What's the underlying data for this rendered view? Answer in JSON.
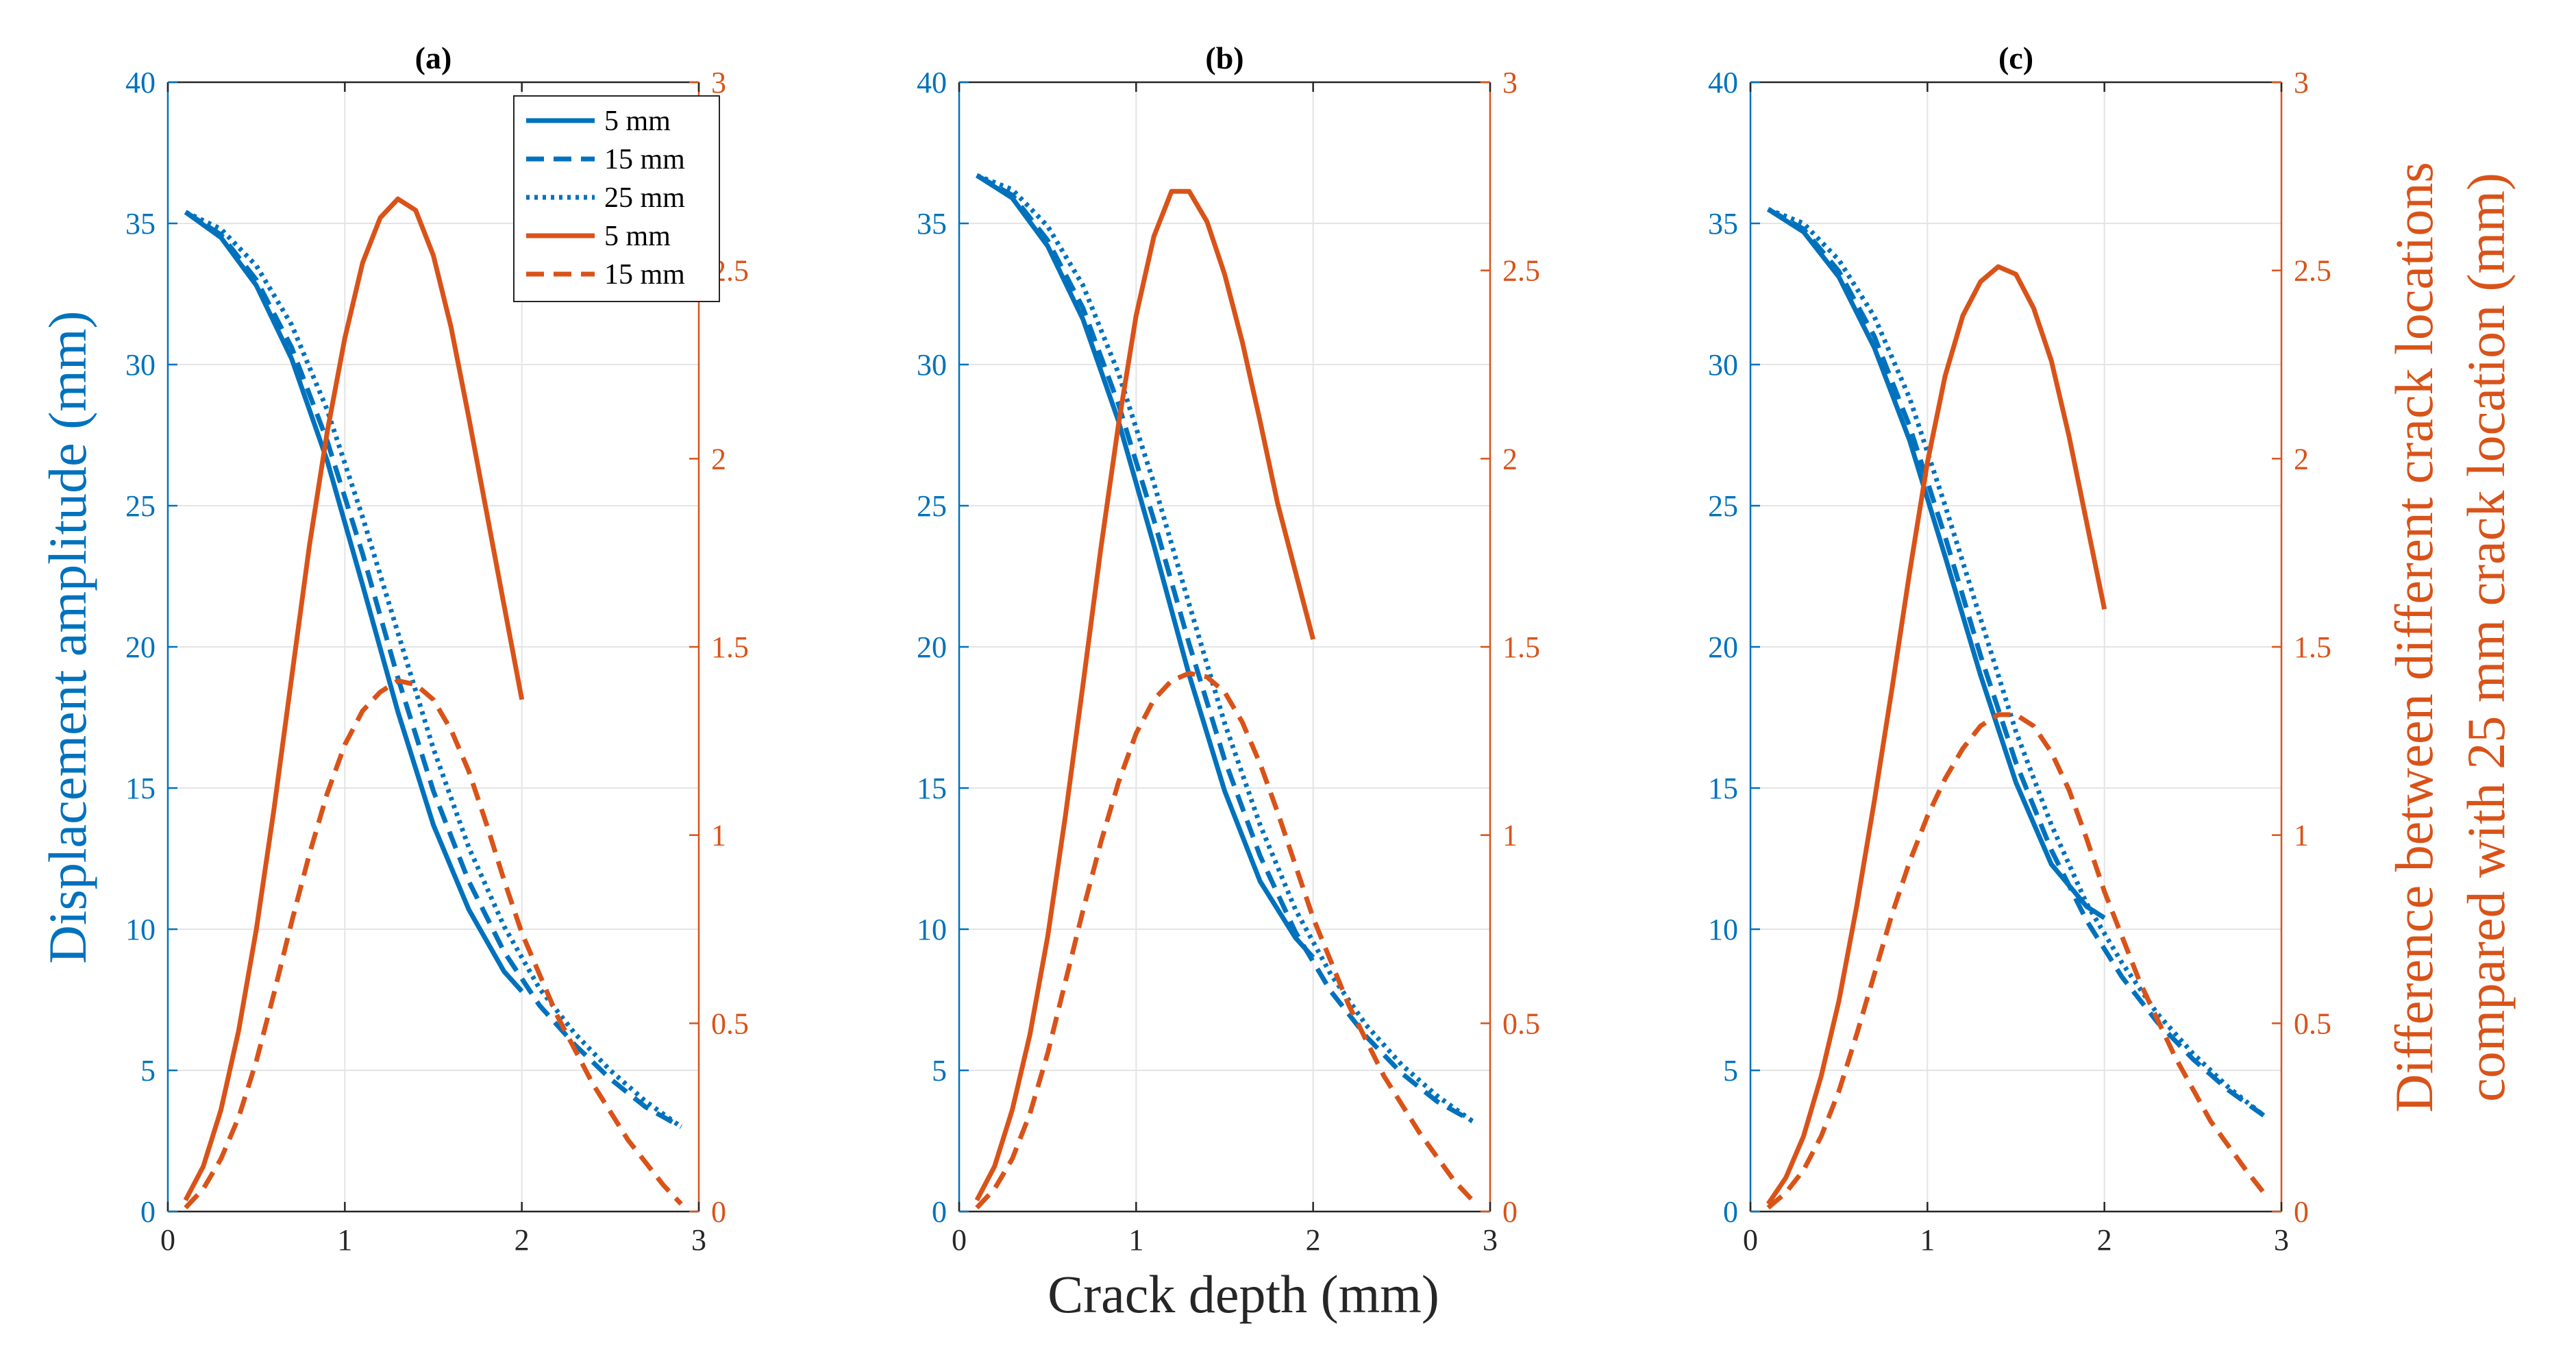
{
  "chart_data": {
    "type": "line",
    "shared": {
      "xlabel": "Crack depth (mm)",
      "ylabel_left": "Displacement amplitude (mm)",
      "ylabel_right_line1": "Difference between different crack locations",
      "ylabel_right_line2": "compared with 25 mm crack location (mm)",
      "xlim": [
        0,
        3
      ],
      "ylim_left": [
        0,
        40
      ],
      "ylim_right": [
        0,
        3
      ],
      "xticks": [
        0,
        1,
        2,
        3
      ],
      "yticks_left": [
        0,
        5,
        10,
        15,
        20,
        25,
        30,
        35,
        40
      ],
      "yticks_right": [
        0,
        0.5,
        1,
        1.5,
        2,
        2.5,
        3
      ],
      "grid": true,
      "colors": {
        "left_axis": "#0072BD",
        "right_axis": "#D95319"
      },
      "legend_placement": "top-right of panel (a)",
      "legend": [
        {
          "label": "5 mm",
          "color": "#0072BD",
          "style": "solid"
        },
        {
          "label": "15 mm",
          "color": "#0072BD",
          "style": "dashed"
        },
        {
          "label": "25 mm",
          "color": "#0072BD",
          "style": "dotted"
        },
        {
          "label": "5 mm",
          "color": "#D95319",
          "style": "solid"
        },
        {
          "label": "15 mm",
          "color": "#D95319",
          "style": "dashed"
        }
      ]
    },
    "panels": [
      {
        "title": "(a)",
        "series": [
          {
            "name": "5 mm",
            "axis": "left",
            "style": "solid",
            "x": [
              0.1,
              0.3,
              0.5,
              0.7,
              0.9,
              1.1,
              1.3,
              1.5,
              1.7,
              1.9,
              2.0
            ],
            "y": [
              35.4,
              34.5,
              32.8,
              30.2,
              26.6,
              22.2,
              17.7,
              13.7,
              10.7,
              8.5,
              7.8
            ]
          },
          {
            "name": "15 mm",
            "axis": "left",
            "style": "dashed",
            "x": [
              0.1,
              0.3,
              0.5,
              0.7,
              0.9,
              1.1,
              1.3,
              1.5,
              1.7,
              1.9,
              2.1,
              2.3,
              2.5,
              2.7,
              2.9
            ],
            "y": [
              35.4,
              34.6,
              33.0,
              30.6,
              27.3,
              23.3,
              18.9,
              14.9,
              11.7,
              9.2,
              7.3,
              5.9,
              4.7,
              3.7,
              3.0
            ]
          },
          {
            "name": "25 mm",
            "axis": "left",
            "style": "dotted",
            "x": [
              0.1,
              0.3,
              0.5,
              0.7,
              0.9,
              1.1,
              1.3,
              1.5,
              1.7,
              1.9,
              2.1,
              2.3,
              2.5,
              2.7,
              2.9
            ],
            "y": [
              35.4,
              34.8,
              33.5,
              31.4,
              28.4,
              24.6,
              20.5,
              16.4,
              12.9,
              10.1,
              7.9,
              6.3,
              5.0,
              3.9,
              3.0
            ]
          },
          {
            "name": "5 mm",
            "axis": "right",
            "style": "solid",
            "x": [
              0.1,
              0.2,
              0.3,
              0.4,
              0.5,
              0.6,
              0.7,
              0.8,
              0.9,
              1.0,
              1.1,
              1.2,
              1.3,
              1.4,
              1.5,
              1.6,
              1.7,
              1.8,
              1.9,
              2.0
            ],
            "y": [
              0.03,
              0.12,
              0.27,
              0.48,
              0.75,
              1.07,
              1.42,
              1.77,
              2.07,
              2.32,
              2.52,
              2.64,
              2.69,
              2.66,
              2.54,
              2.35,
              2.11,
              1.86,
              1.61,
              1.36
            ]
          },
          {
            "name": "15 mm",
            "axis": "right",
            "style": "dashed",
            "x": [
              0.1,
              0.2,
              0.3,
              0.4,
              0.5,
              0.6,
              0.7,
              0.8,
              0.9,
              1.0,
              1.1,
              1.2,
              1.3,
              1.4,
              1.5,
              1.6,
              1.7,
              1.8,
              1.9,
              2.0,
              2.2,
              2.4,
              2.6,
              2.8,
              2.9
            ],
            "y": [
              0.01,
              0.06,
              0.14,
              0.25,
              0.4,
              0.58,
              0.77,
              0.95,
              1.11,
              1.24,
              1.33,
              1.38,
              1.41,
              1.4,
              1.36,
              1.28,
              1.17,
              1.03,
              0.88,
              0.74,
              0.52,
              0.34,
              0.19,
              0.07,
              0.02
            ]
          }
        ]
      },
      {
        "title": "(b)",
        "series": [
          {
            "name": "5 mm",
            "axis": "left",
            "style": "solid",
            "x": [
              0.1,
              0.3,
              0.5,
              0.7,
              0.9,
              1.1,
              1.3,
              1.5,
              1.7,
              1.9,
              2.0
            ],
            "y": [
              36.7,
              35.9,
              34.2,
              31.6,
              28.0,
              23.6,
              19.0,
              14.9,
              11.7,
              9.7,
              9.0
            ]
          },
          {
            "name": "15 mm",
            "axis": "left",
            "style": "dashed",
            "x": [
              0.1,
              0.3,
              0.5,
              0.7,
              0.9,
              1.1,
              1.3,
              1.5,
              1.7,
              1.9,
              2.1,
              2.3,
              2.5,
              2.7,
              2.9
            ],
            "y": [
              36.7,
              36.0,
              34.4,
              32.0,
              28.6,
              24.5,
              20.1,
              16.0,
              12.6,
              9.9,
              7.8,
              6.2,
              4.9,
              3.9,
              3.2
            ]
          },
          {
            "name": "25 mm",
            "axis": "left",
            "style": "dotted",
            "x": [
              0.1,
              0.3,
              0.5,
              0.7,
              0.9,
              1.1,
              1.3,
              1.5,
              1.7,
              1.9,
              2.1,
              2.3,
              2.5,
              2.7,
              2.9
            ],
            "y": [
              36.7,
              36.2,
              34.9,
              32.8,
              29.7,
              25.8,
              21.5,
              17.3,
              13.7,
              10.7,
              8.4,
              6.6,
              5.2,
              4.1,
              3.2
            ]
          },
          {
            "name": "5 mm",
            "axis": "right",
            "style": "solid",
            "x": [
              0.1,
              0.2,
              0.3,
              0.4,
              0.5,
              0.6,
              0.7,
              0.8,
              0.9,
              1.0,
              1.1,
              1.2,
              1.3,
              1.4,
              1.5,
              1.6,
              1.7,
              1.8,
              1.9,
              2.0
            ],
            "y": [
              0.03,
              0.12,
              0.27,
              0.47,
              0.73,
              1.05,
              1.4,
              1.76,
              2.09,
              2.38,
              2.59,
              2.71,
              2.71,
              2.63,
              2.49,
              2.31,
              2.1,
              1.88,
              1.7,
              1.52
            ]
          },
          {
            "name": "15 mm",
            "axis": "right",
            "style": "dashed",
            "x": [
              0.1,
              0.2,
              0.3,
              0.4,
              0.5,
              0.6,
              0.7,
              0.8,
              0.9,
              1.0,
              1.1,
              1.2,
              1.3,
              1.4,
              1.5,
              1.6,
              1.7,
              1.8,
              1.9,
              2.0,
              2.2,
              2.4,
              2.6,
              2.8,
              2.9
            ],
            "y": [
              0.01,
              0.06,
              0.14,
              0.26,
              0.42,
              0.61,
              0.8,
              0.98,
              1.14,
              1.27,
              1.36,
              1.41,
              1.43,
              1.42,
              1.38,
              1.3,
              1.19,
              1.06,
              0.92,
              0.78,
              0.55,
              0.36,
              0.21,
              0.08,
              0.03
            ]
          }
        ]
      },
      {
        "title": "(c)",
        "series": [
          {
            "name": "5 mm",
            "axis": "left",
            "style": "solid",
            "x": [
              0.1,
              0.3,
              0.5,
              0.7,
              0.9,
              1.1,
              1.3,
              1.5,
              1.7,
              1.9,
              2.0
            ],
            "y": [
              35.5,
              34.7,
              33.1,
              30.6,
              27.3,
              23.2,
              19.0,
              15.2,
              12.3,
              10.8,
              10.4
            ]
          },
          {
            "name": "15 mm",
            "axis": "left",
            "style": "dashed",
            "x": [
              0.1,
              0.3,
              0.5,
              0.7,
              0.9,
              1.1,
              1.3,
              1.5,
              1.7,
              1.9,
              2.1,
              2.3,
              2.5,
              2.7,
              2.9
            ],
            "y": [
              35.5,
              34.8,
              33.3,
              31.0,
              27.8,
              23.9,
              19.7,
              15.9,
              12.8,
              10.3,
              8.3,
              6.7,
              5.4,
              4.3,
              3.4
            ]
          },
          {
            "name": "25 mm",
            "axis": "left",
            "style": "dotted",
            "x": [
              0.1,
              0.3,
              0.5,
              0.7,
              0.9,
              1.1,
              1.3,
              1.5,
              1.7,
              1.9,
              2.1,
              2.3,
              2.5,
              2.7,
              2.9
            ],
            "y": [
              35.5,
              35.0,
              33.7,
              31.7,
              28.8,
              25.0,
              21.0,
              17.0,
              13.7,
              10.9,
              8.8,
              7.0,
              5.6,
              4.4,
              3.4
            ]
          },
          {
            "name": "5 mm",
            "axis": "right",
            "style": "solid",
            "x": [
              0.1,
              0.2,
              0.3,
              0.4,
              0.5,
              0.6,
              0.7,
              0.8,
              0.9,
              1.0,
              1.1,
              1.2,
              1.3,
              1.4,
              1.5,
              1.6,
              1.7,
              1.8,
              1.9,
              2.0
            ],
            "y": [
              0.02,
              0.09,
              0.2,
              0.36,
              0.56,
              0.81,
              1.09,
              1.39,
              1.7,
              1.99,
              2.22,
              2.38,
              2.47,
              2.51,
              2.49,
              2.4,
              2.26,
              2.06,
              1.83,
              1.6
            ]
          },
          {
            "name": "15 mm",
            "axis": "right",
            "style": "dashed",
            "x": [
              0.1,
              0.2,
              0.3,
              0.4,
              0.5,
              0.6,
              0.7,
              0.8,
              0.9,
              1.0,
              1.1,
              1.2,
              1.3,
              1.4,
              1.5,
              1.6,
              1.7,
              1.8,
              1.9,
              2.0,
              2.2,
              2.4,
              2.6,
              2.8,
              2.9
            ],
            "y": [
              0.01,
              0.05,
              0.11,
              0.2,
              0.32,
              0.47,
              0.63,
              0.79,
              0.93,
              1.05,
              1.15,
              1.23,
              1.29,
              1.32,
              1.32,
              1.29,
              1.22,
              1.12,
              0.99,
              0.85,
              0.61,
              0.41,
              0.24,
              0.11,
              0.05
            ]
          }
        ]
      }
    ]
  }
}
